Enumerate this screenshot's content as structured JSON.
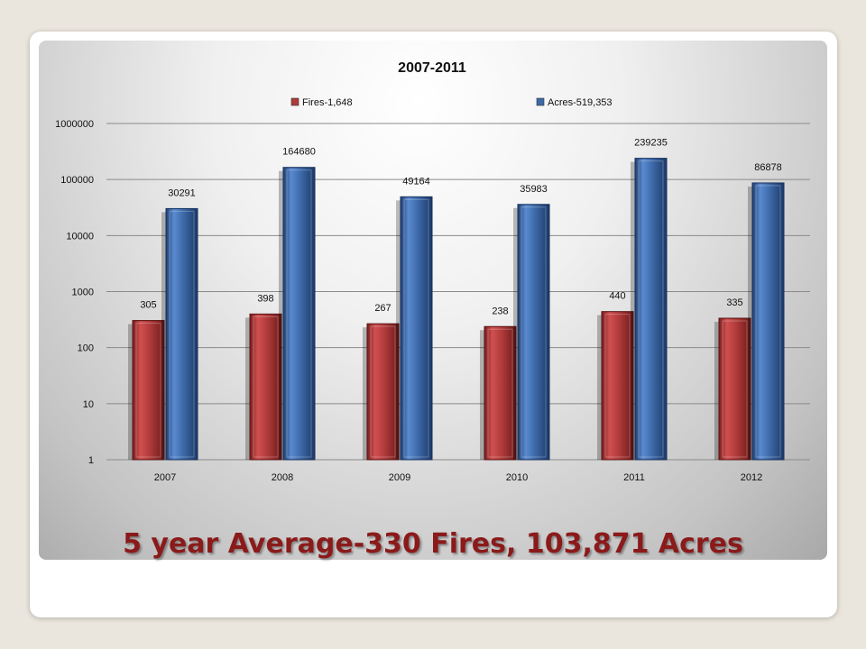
{
  "footer_text": "5 year Average-330 Fires, 103,871 Acres",
  "colors": {
    "fires": "#b03a3a",
    "acres": "#3c6aa8",
    "footer": "#8b1a1a"
  },
  "chart_data": {
    "type": "bar",
    "title": "2007-2011",
    "xlabel": "",
    "ylabel": "",
    "yscale": "log",
    "ylim": [
      1,
      1000000
    ],
    "yticks": [
      "1",
      "10",
      "100",
      "1000",
      "10000",
      "100000",
      "1000000"
    ],
    "grid": true,
    "legend_position": "top",
    "categories": [
      "2007",
      "2008",
      "2009",
      "2010",
      "2011",
      "2012"
    ],
    "series": [
      {
        "name": "Fires-1,648",
        "color": "#b03a3a",
        "values": [
          305,
          398,
          267,
          238,
          440,
          335
        ]
      },
      {
        "name": "Acres-519,353",
        "color": "#3c6aa8",
        "values": [
          30291,
          164680,
          49164,
          35983,
          239235,
          86878
        ]
      }
    ]
  }
}
